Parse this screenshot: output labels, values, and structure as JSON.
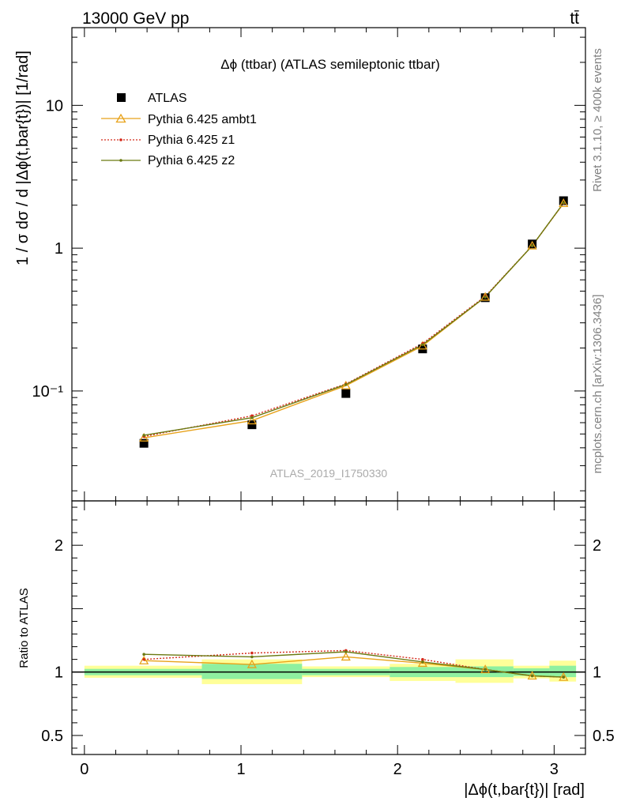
{
  "header": {
    "energy_label": "13000 GeV pp",
    "process_label": "tt̄"
  },
  "side_labels": {
    "rivet": "Rivet 3.1.10, ≥ 400k events",
    "mcplots": "mcplots.cern.ch [arXiv:1306.3436]"
  },
  "chart_data": [
    {
      "type": "scatter",
      "panel": "main",
      "title": "Δϕ (ttbar) (ATLAS semileptonic ttbar)",
      "watermark": "ATLAS_2019_I1750330",
      "ylabel": "1 / σ dσ / d |Δϕ(t,bar{t})| [1/rad]",
      "xlim": [
        -0.08,
        3.2
      ],
      "ylim": [
        0.017,
        35
      ],
      "yscale": "log",
      "yticks": [
        {
          "value": 0.1,
          "label": "10⁻¹"
        },
        {
          "value": 1,
          "label": "1"
        },
        {
          "value": 10,
          "label": "10"
        }
      ],
      "legend_position": "top-left",
      "bins": [
        [
          0.0,
          0.75
        ],
        [
          0.75,
          1.39
        ],
        [
          1.39,
          1.95
        ],
        [
          1.95,
          2.37
        ],
        [
          2.37,
          2.74
        ],
        [
          2.74,
          2.97
        ],
        [
          2.97,
          3.14
        ]
      ],
      "x": [
        0.38,
        1.07,
        1.67,
        2.16,
        2.56,
        2.86,
        3.06
      ],
      "series": [
        {
          "name": "ATLAS",
          "style": "data",
          "color": "#000000",
          "values": [
            0.043,
            0.058,
            0.096,
            0.197,
            0.45,
            1.07,
            2.15
          ]
        },
        {
          "name": "Pythia 6.425 ambt1",
          "style": "triangle",
          "color": "#e8a21a",
          "values": [
            0.047,
            0.062,
            0.109,
            0.207,
            0.455,
            1.04,
            2.06
          ]
        },
        {
          "name": "Pythia 6.425 z1",
          "style": "dotted",
          "color": "#d42a1a",
          "values": [
            0.048,
            0.067,
            0.112,
            0.215,
            0.46,
            1.04,
            2.06
          ]
        },
        {
          "name": "Pythia 6.425 z2",
          "style": "line",
          "color": "#6b7a12",
          "values": [
            0.049,
            0.065,
            0.111,
            0.211,
            0.455,
            1.04,
            2.07
          ]
        }
      ]
    },
    {
      "type": "line",
      "panel": "ratio",
      "ylabel": "Ratio to ATLAS",
      "xlabel": "|Δϕ(t,bar{t})| [rad]",
      "xlim": [
        -0.08,
        3.2
      ],
      "ylim": [
        0.35,
        2.35
      ],
      "yticks": [
        {
          "value": 0.5,
          "label": "0.5"
        },
        {
          "value": 1,
          "label": "1"
        },
        {
          "value": 2,
          "label": "2"
        }
      ],
      "xticks": [
        {
          "value": 0,
          "label": "0"
        },
        {
          "value": 1,
          "label": "1"
        },
        {
          "value": 2,
          "label": "2"
        },
        {
          "value": 3,
          "label": "3"
        }
      ],
      "bands": {
        "green": [
          [
            0.975,
            1.025
          ],
          [
            0.945,
            1.065
          ],
          [
            0.975,
            1.025
          ],
          [
            0.96,
            1.04
          ],
          [
            0.96,
            1.045
          ],
          [
            0.97,
            1.03
          ],
          [
            0.96,
            1.05
          ]
        ],
        "yellow": [
          [
            0.955,
            1.05
          ],
          [
            0.905,
            1.1
          ],
          [
            0.96,
            1.045
          ],
          [
            0.93,
            1.065
          ],
          [
            0.915,
            1.1
          ],
          [
            0.95,
            1.05
          ],
          [
            0.925,
            1.09
          ]
        ]
      },
      "x": [
        0.38,
        1.07,
        1.67,
        2.16,
        2.56,
        2.86,
        3.06
      ],
      "series": [
        {
          "name": "Pythia 6.425 ambt1",
          "style": "triangle",
          "color": "#e8a21a",
          "values": [
            1.09,
            1.06,
            1.12,
            1.07,
            1.02,
            0.97,
            0.96
          ]
        },
        {
          "name": "Pythia 6.425 z1",
          "style": "dotted",
          "color": "#d42a1a",
          "values": [
            1.1,
            1.15,
            1.17,
            1.1,
            1.02,
            0.97,
            0.96
          ]
        },
        {
          "name": "Pythia 6.425 z2",
          "style": "line",
          "color": "#6b7a12",
          "values": [
            1.14,
            1.12,
            1.16,
            1.08,
            1.02,
            0.97,
            0.96
          ]
        }
      ]
    }
  ]
}
